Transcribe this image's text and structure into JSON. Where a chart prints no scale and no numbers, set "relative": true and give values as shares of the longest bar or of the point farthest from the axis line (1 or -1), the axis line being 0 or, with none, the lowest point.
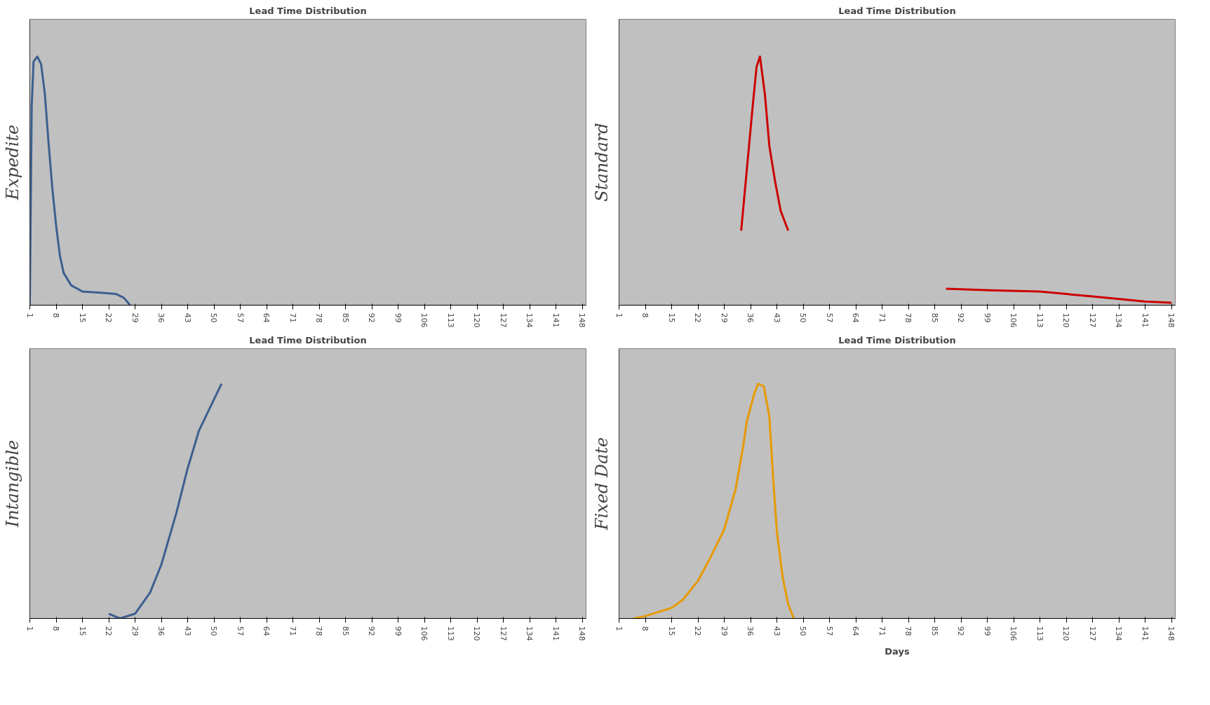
{
  "chart_data": [
    {
      "type": "line",
      "title": "Lead Time Distribution",
      "ylabel": "Expedite",
      "relative": true,
      "tick_labels": "x",
      "color": "#3c5f8f",
      "xlim": [
        1,
        149
      ],
      "xticks": [
        1,
        8,
        15,
        22,
        29,
        36,
        43,
        50,
        57,
        64,
        71,
        78,
        85,
        92,
        99,
        106,
        113,
        120,
        127,
        134,
        141,
        148
      ],
      "x": [
        1,
        1.5,
        2,
        3,
        4,
        5,
        6,
        7,
        8,
        9,
        10,
        12,
        15,
        20,
        24,
        26,
        27.7
      ],
      "values": [
        0,
        0.8,
        0.98,
        1.0,
        0.97,
        0.85,
        0.65,
        0.47,
        0.32,
        0.2,
        0.13,
        0.08,
        0.055,
        0.05,
        0.045,
        0.03,
        0
      ]
    },
    {
      "type": "line",
      "title": "Lead Time Distribution",
      "ylabel": "Standard",
      "relative": true,
      "tick_labels": "x",
      "color": "#cc0000",
      "xlim": [
        1,
        149
      ],
      "xticks": [
        1,
        8,
        15,
        22,
        29,
        36,
        43,
        50,
        57,
        64,
        71,
        78,
        85,
        92,
        99,
        106,
        113,
        120,
        127,
        134,
        141,
        148
      ],
      "x": [
        33.5,
        36.5,
        37.6,
        38.5,
        39.8,
        41,
        42.5,
        44,
        46,
        60,
        88,
        100,
        113,
        127,
        141,
        148
      ],
      "values": [
        0.3,
        0.79,
        0.96,
        1.0,
        0.85,
        0.64,
        0.5,
        0.38,
        0.3,
        null,
        0.066,
        0.06,
        0.055,
        0.035,
        0.015,
        0.01
      ]
    },
    {
      "type": "line",
      "title": "Lead Time Distribution",
      "ylabel": "Intangible",
      "relative": true,
      "tick_labels": "x",
      "color": "#3c5f8f",
      "xlim": [
        1,
        149
      ],
      "xticks": [
        1,
        8,
        15,
        22,
        29,
        36,
        43,
        50,
        57,
        64,
        71,
        78,
        85,
        92,
        99,
        106,
        113,
        120,
        127,
        134,
        141,
        148
      ],
      "x": [
        22,
        25,
        29,
        33,
        36,
        40,
        43,
        46,
        49,
        52
      ],
      "values": [
        0.02,
        0,
        0.02,
        0.11,
        0.23,
        0.45,
        0.64,
        0.8,
        0.9,
        1.0
      ]
    },
    {
      "type": "line",
      "title": "Lead Time Distribution",
      "ylabel": "Fixed Date",
      "xlabel": "Days",
      "relative": true,
      "tick_labels": "x",
      "color": "#e69a00",
      "xlim": [
        1,
        149
      ],
      "xticks": [
        1,
        8,
        15,
        22,
        29,
        36,
        43,
        50,
        57,
        64,
        71,
        78,
        85,
        92,
        99,
        106,
        113,
        120,
        127,
        134,
        141,
        148
      ],
      "x": [
        5,
        8,
        15,
        18,
        22,
        25,
        29,
        32,
        34,
        35,
        37,
        38,
        39.5,
        41,
        42,
        43,
        44.5,
        46,
        47.5
      ],
      "values": [
        0,
        0.01,
        0.045,
        0.08,
        0.16,
        0.25,
        0.38,
        0.55,
        0.73,
        0.84,
        0.96,
        1.0,
        0.99,
        0.86,
        0.6,
        0.37,
        0.18,
        0.06,
        0
      ]
    }
  ]
}
